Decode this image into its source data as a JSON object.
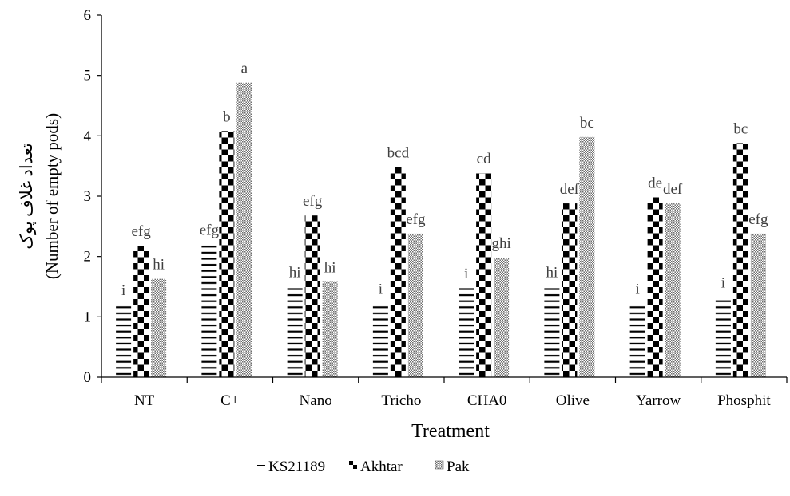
{
  "chart_data": {
    "type": "bar",
    "title": "",
    "xlabel": "Treatment",
    "ylabel": "(Number of empty pods)",
    "ylabel_fa": "تعداد غلاف پوک",
    "ylim": [
      0,
      6
    ],
    "yticks": [
      "0",
      "1",
      "2",
      "3",
      "4",
      "5",
      "6"
    ],
    "grid": false,
    "legend_position": "bottom",
    "categories": [
      "NT",
      "C+",
      "Nano",
      "Tricho",
      "CHA0",
      "Olive",
      "Yarrow",
      "Phosphit"
    ],
    "series": [
      {
        "name": "KS21189",
        "pattern": "horizontal-lines",
        "values": [
          1.2,
          2.2,
          1.5,
          1.22,
          1.48,
          1.5,
          1.22,
          1.33
        ],
        "labels": [
          "i",
          "efg",
          "hi",
          "i",
          "i",
          "hi",
          "i",
          "i"
        ]
      },
      {
        "name": "Akhtar",
        "pattern": "checkerboard",
        "values": [
          2.18,
          4.08,
          2.68,
          3.48,
          3.38,
          2.88,
          2.98,
          3.88
        ],
        "labels": [
          "efg",
          "b",
          "efg",
          "bcd",
          "cd",
          "def",
          "de",
          "bc"
        ]
      },
      {
        "name": "Pak",
        "pattern": "fine-grid",
        "values": [
          1.63,
          4.88,
          1.58,
          2.38,
          1.98,
          3.98,
          2.88,
          2.38
        ],
        "labels": [
          "hi",
          "a",
          "hi",
          "efg",
          "ghi",
          "bc",
          "def",
          "efg"
        ]
      }
    ],
    "colors": {
      "ink": "#000000",
      "label": "#404040",
      "background": "#ffffff"
    }
  }
}
